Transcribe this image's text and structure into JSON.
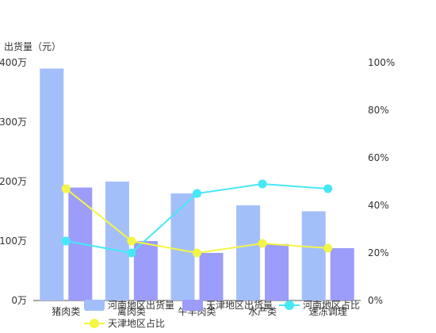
{
  "chart_data": {
    "type": "bar",
    "categories": [
      "猪肉类",
      "禽肉类",
      "牛羊肉类",
      "水产类",
      "速冻调理"
    ],
    "y_left": {
      "label": "出货量（元）",
      "ticks": [
        "0万",
        "100万",
        "200万",
        "300万",
        "400万"
      ],
      "range": [
        0,
        4000000
      ]
    },
    "y_right": {
      "ticks": [
        "0%",
        "20%",
        "40%",
        "60%",
        "80%",
        "100%"
      ],
      "range": [
        0,
        100
      ]
    },
    "bar_series": [
      {
        "name": "河南地区出货量",
        "color": "#a3bffa",
        "values": [
          3900000,
          2000000,
          1800000,
          1600000,
          1500000
        ]
      },
      {
        "name": "天津地区出货量",
        "color": "#9c9cfa",
        "values": [
          1900000,
          1000000,
          800000,
          950000,
          880000
        ]
      }
    ],
    "line_series": [
      {
        "name": "河南地区占比",
        "color": "#45e8f5",
        "values": [
          25,
          20,
          45,
          49,
          47
        ]
      },
      {
        "name": "天津地区占比",
        "color": "#f5f545",
        "values": [
          47,
          25,
          20,
          24,
          22
        ]
      }
    ],
    "legend_position": "bottom",
    "grid": false
  }
}
